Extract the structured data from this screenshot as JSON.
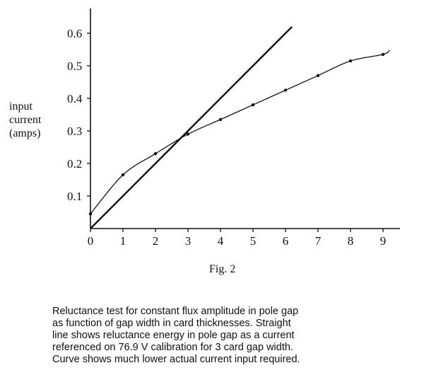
{
  "chart_data": {
    "type": "scatter",
    "xlim": [
      0,
      9.5
    ],
    "ylim": [
      0,
      0.65
    ],
    "xticks": [
      "0",
      "1",
      "2",
      "3",
      "4",
      "5",
      "6",
      "7",
      "8",
      "9"
    ],
    "yticks": [
      "0.1",
      "0.2",
      "0.3",
      "0.4",
      "0.5",
      "0.6"
    ],
    "ylabel": [
      "input",
      "current",
      "(amps)"
    ],
    "xlabel": "",
    "grid": false,
    "series": [
      {
        "kind": "points_with_smooth_curve",
        "x": [
          0,
          1,
          2,
          3,
          4,
          5,
          6,
          7,
          8,
          9
        ],
        "y": [
          0.045,
          0.165,
          0.23,
          0.29,
          0.335,
          0.38,
          0.425,
          0.47,
          0.515,
          0.535
        ]
      },
      {
        "kind": "straight_line",
        "x": [
          0,
          6.2
        ],
        "y": [
          0,
          0.62
        ]
      }
    ]
  },
  "figure": {
    "label": "Fig. 2"
  },
  "caption": {
    "lines": [
      "Reluctance test for constant flux amplitude in pole gap",
      "as function of gap width in card thicknesses.  Straight",
      "line shows reluctance energy in pole gap as a current",
      "referenced on 76.9 V calibration for 3 card gap width.",
      "Curve shows much lower actual current input required."
    ]
  }
}
